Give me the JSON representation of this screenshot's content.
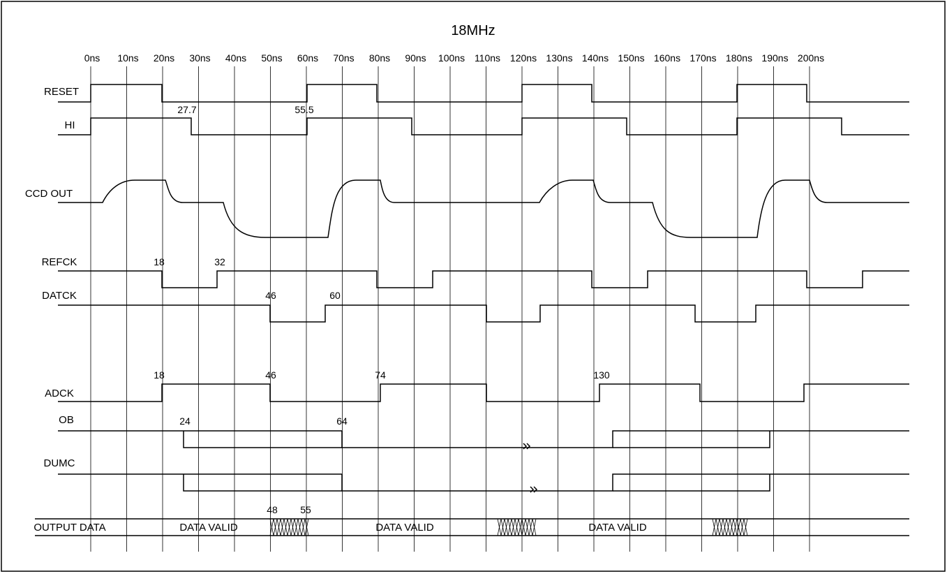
{
  "title": "18MHz",
  "time_ticks": [
    "0ns",
    "10ns",
    "20ns",
    "30ns",
    "40ns",
    "50ns",
    "60ns",
    "70ns",
    "80ns",
    "90ns",
    "100ns",
    "110ns",
    "120ns",
    "130ns",
    "140ns",
    "150ns",
    "160ns",
    "170ns",
    "180ns",
    "190ns",
    "200ns"
  ],
  "signals": {
    "reset": "RESET",
    "hi": "HI",
    "ccd_out": "CCD OUT",
    "refck": "REFCK",
    "datck": "DATCK",
    "adck": "ADCK",
    "ob": "OB",
    "dumc": "DUMC",
    "output_data": "OUTPUT DATA"
  },
  "annotations": {
    "hi_fall": "27.7",
    "hi_rise": "55.5",
    "refck_fall": "18",
    "refck_rise": "32",
    "datck_fall": "46",
    "datck_rise": "60",
    "adck_rise_1": "18",
    "adck_fall": "46",
    "adck_rise_2": "74",
    "adck_rise_3": "130",
    "ob_fall": "24",
    "ob_rise": "64",
    "output_start": "48",
    "output_end": "55"
  },
  "output_labels": [
    "DATA VALID",
    "DATA VALID",
    "DATA VALID"
  ]
}
